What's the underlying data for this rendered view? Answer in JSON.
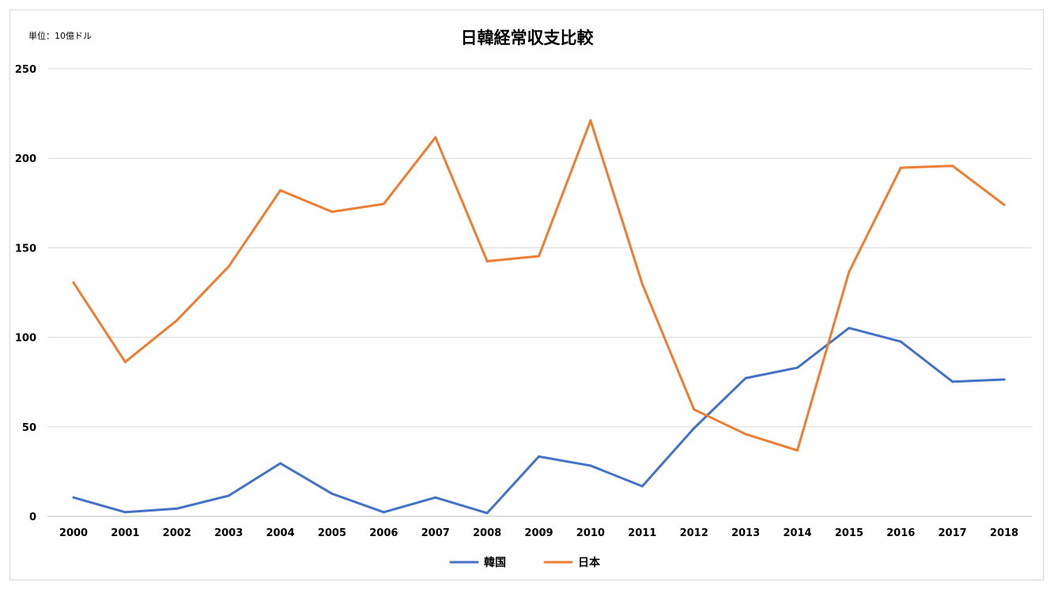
{
  "header": {
    "unit_label": "単位：10億ドル"
  },
  "chart_data": {
    "type": "line",
    "title": "日韓経常収支比較",
    "xlabel": "",
    "ylabel": "",
    "ylim": [
      0,
      250
    ],
    "y_ticks": [
      0,
      50,
      100,
      150,
      200,
      250
    ],
    "categories": [
      "2000",
      "2001",
      "2002",
      "2003",
      "2004",
      "2005",
      "2006",
      "2007",
      "2008",
      "2009",
      "2010",
      "2011",
      "2012",
      "2013",
      "2014",
      "2015",
      "2016",
      "2017",
      "2018"
    ],
    "grid": true,
    "legend_position": "bottom",
    "series": [
      {
        "name": "韓国",
        "color": "#4472C4",
        "values": [
          10.5,
          2.3,
          4.3,
          11.5,
          29.6,
          12.6,
          2.3,
          10.5,
          1.8,
          33.4,
          28.3,
          16.8,
          49.2,
          77.2,
          83.0,
          105.2,
          97.6,
          75.2,
          76.4
        ]
      },
      {
        "name": "日本",
        "color": "#ED7D31",
        "values": [
          130.5,
          86.2,
          109.5,
          139.5,
          182.1,
          170.1,
          174.5,
          211.7,
          142.5,
          145.3,
          221.1,
          129.8,
          59.7,
          45.9,
          36.8,
          136.6,
          194.7,
          195.8,
          174.0
        ]
      }
    ]
  }
}
